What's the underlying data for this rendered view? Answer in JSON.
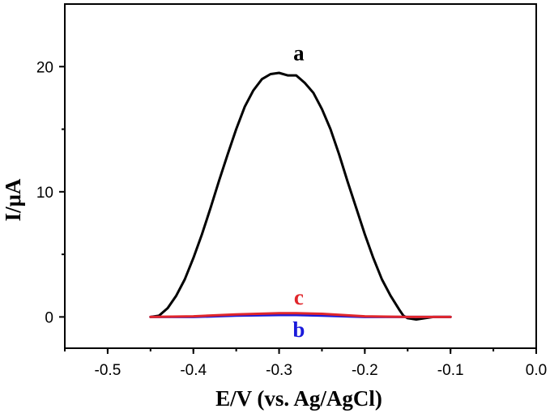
{
  "chart_data": {
    "type": "line",
    "xlabel": "E/V (vs. Ag/AgCl)",
    "ylabel": "I/μA",
    "xlim": [
      -0.55,
      0.0
    ],
    "ylim": [
      -2.5,
      25
    ],
    "x_ticks": [
      -0.5,
      -0.4,
      -0.3,
      -0.2,
      -0.1,
      0.0
    ],
    "x_tick_labels": [
      "-0.5",
      "-0.4",
      "-0.3",
      "-0.2",
      "-0.1",
      "0.0"
    ],
    "y_ticks": [
      0,
      10,
      20
    ],
    "y_tick_labels": [
      "0",
      "10",
      "20"
    ],
    "grid": false,
    "series": [
      {
        "name": "a",
        "color": "#000000",
        "x": [
          -0.45,
          -0.44,
          -0.43,
          -0.42,
          -0.41,
          -0.4,
          -0.39,
          -0.38,
          -0.37,
          -0.36,
          -0.35,
          -0.34,
          -0.33,
          -0.32,
          -0.31,
          -0.3,
          -0.29,
          -0.28,
          -0.27,
          -0.26,
          -0.25,
          -0.24,
          -0.23,
          -0.22,
          -0.21,
          -0.2,
          -0.19,
          -0.18,
          -0.17,
          -0.16,
          -0.155,
          -0.15,
          -0.14,
          -0.13,
          -0.12,
          -0.11,
          -0.1
        ],
        "y": [
          0.0,
          0.1,
          0.7,
          1.7,
          3.0,
          4.7,
          6.6,
          8.7,
          10.9,
          13.0,
          15.0,
          16.8,
          18.1,
          19.0,
          19.4,
          19.5,
          19.3,
          19.3,
          18.7,
          17.9,
          16.6,
          15.0,
          13.0,
          10.8,
          8.7,
          6.6,
          4.7,
          3.0,
          1.7,
          0.6,
          0.1,
          -0.1,
          -0.2,
          -0.1,
          0.0,
          0.0,
          0.0
        ]
      },
      {
        "name": "b",
        "color": "#1a1adb",
        "x": [
          -0.45,
          -0.4,
          -0.35,
          -0.3,
          -0.28,
          -0.25,
          -0.2,
          -0.15,
          -0.1
        ],
        "y": [
          0.0,
          0.0,
          0.1,
          0.15,
          0.15,
          0.1,
          0.0,
          0.0,
          0.0
        ]
      },
      {
        "name": "c",
        "color": "#e0262b",
        "x": [
          -0.45,
          -0.4,
          -0.35,
          -0.3,
          -0.28,
          -0.25,
          -0.2,
          -0.15,
          -0.1
        ],
        "y": [
          0.0,
          0.05,
          0.2,
          0.3,
          0.3,
          0.25,
          0.05,
          0.0,
          0.0
        ]
      }
    ],
    "annotations": [
      {
        "text": "a",
        "x": -0.277,
        "y": 20.5,
        "color": "#000000"
      },
      {
        "text": "c",
        "x": -0.277,
        "y": 1.0,
        "color": "#e0262b"
      },
      {
        "text": "b",
        "x": -0.277,
        "y": -1.6,
        "color": "#1a1adb"
      }
    ]
  }
}
